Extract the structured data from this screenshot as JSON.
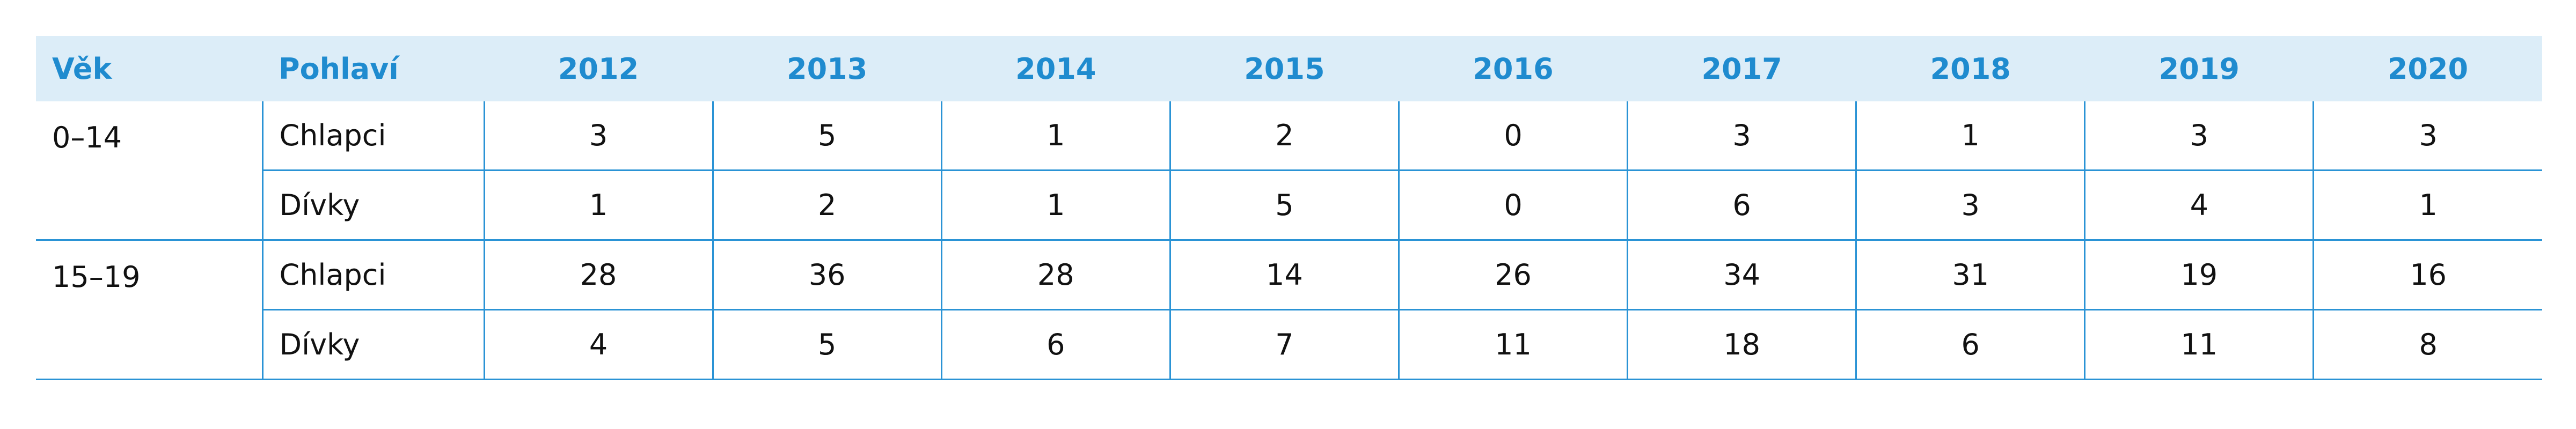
{
  "table": {
    "header": [
      "Věk",
      "Pohlaví",
      "2012",
      "2013",
      "2014",
      "2015",
      "2016",
      "2017",
      "2018",
      "2019",
      "2020"
    ],
    "groups": [
      {
        "age": "0–14",
        "rows": [
          {
            "sex": "Chlapci",
            "values": [
              3,
              5,
              1,
              2,
              0,
              3,
              1,
              3,
              3
            ]
          },
          {
            "sex": "Dívky",
            "values": [
              1,
              2,
              1,
              5,
              0,
              6,
              3,
              4,
              1
            ]
          }
        ]
      },
      {
        "age": "15–19",
        "rows": [
          {
            "sex": "Chlapci",
            "values": [
              28,
              36,
              28,
              14,
              26,
              34,
              31,
              19,
              16
            ]
          },
          {
            "sex": "Dívky",
            "values": [
              4,
              5,
              6,
              7,
              11,
              18,
              6,
              11,
              8
            ]
          }
        ]
      }
    ]
  }
}
